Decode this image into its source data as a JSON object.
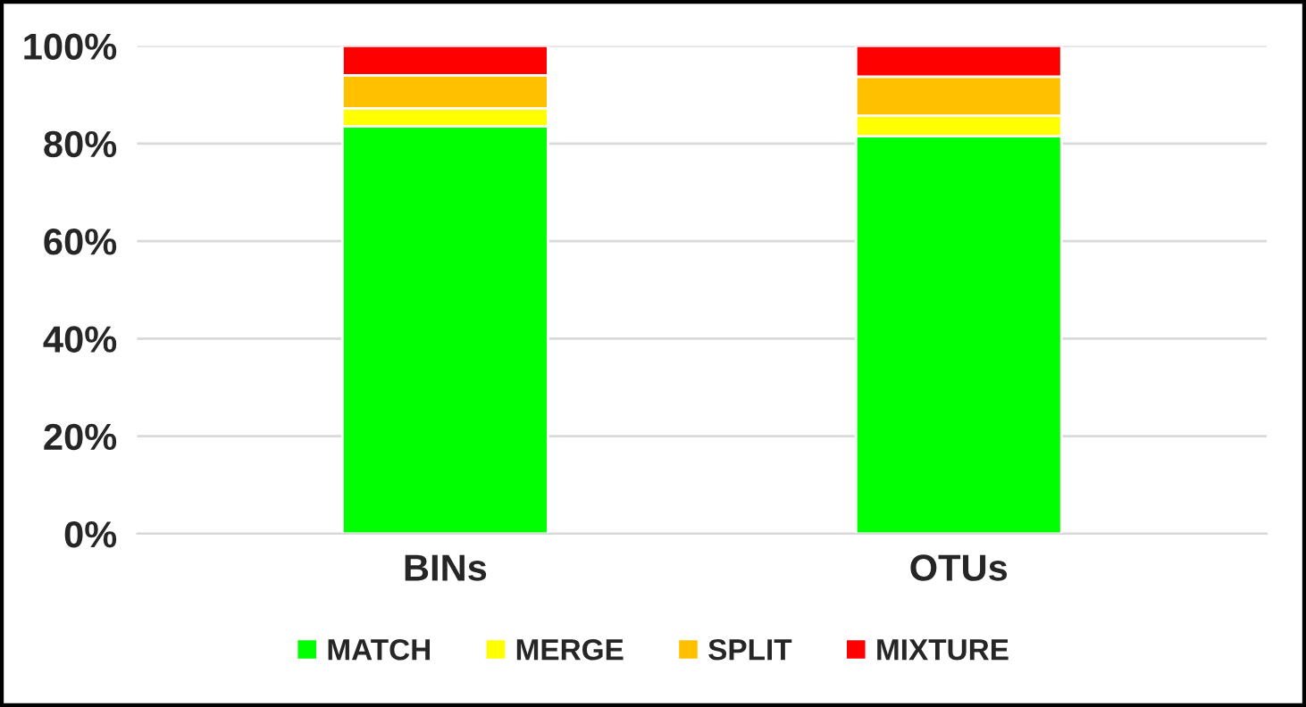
{
  "chart_data": {
    "type": "bar",
    "stacked": true,
    "categories": [
      "BINs",
      "OTUs"
    ],
    "series": [
      {
        "name": "MATCH",
        "color": "#00ff00",
        "values": [
          83.5,
          81.5
        ]
      },
      {
        "name": "MERGE",
        "color": "#ffff00",
        "values": [
          3.7,
          4.2
        ]
      },
      {
        "name": "SPLIT",
        "color": "#ffc000",
        "values": [
          6.8,
          8.0
        ]
      },
      {
        "name": "MIXTURE",
        "color": "#ff0000",
        "values": [
          6.0,
          6.3
        ]
      }
    ],
    "ylim": [
      0,
      100
    ],
    "yticks": [
      {
        "value": 0,
        "label": "0%"
      },
      {
        "value": 20,
        "label": "20%"
      },
      {
        "value": 40,
        "label": "40%"
      },
      {
        "value": 60,
        "label": "60%"
      },
      {
        "value": 80,
        "label": "80%"
      },
      {
        "value": 100,
        "label": "100%"
      }
    ],
    "grid": "y",
    "legend": "bottom"
  }
}
